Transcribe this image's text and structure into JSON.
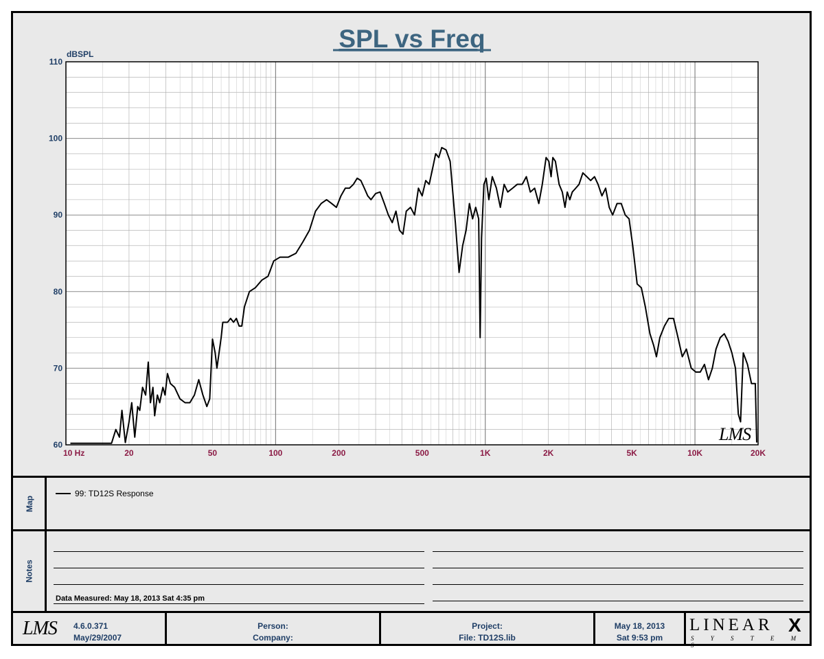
{
  "chart_data": {
    "type": "line",
    "title": "SPL vs Freq",
    "ylabel": "dBSPL",
    "xlabel": "",
    "x_scale": "log",
    "xlim": [
      10,
      20000
    ],
    "ylim": [
      60,
      110
    ],
    "grid": true,
    "x_ticks": [
      {
        "value": 10,
        "label": "10  Hz"
      },
      {
        "value": 20,
        "label": "20"
      },
      {
        "value": 50,
        "label": "50"
      },
      {
        "value": 100,
        "label": "100"
      },
      {
        "value": 200,
        "label": "200"
      },
      {
        "value": 500,
        "label": "500"
      },
      {
        "value": 1000,
        "label": "1K"
      },
      {
        "value": 2000,
        "label": "2K"
      },
      {
        "value": 5000,
        "label": "5K"
      },
      {
        "value": 10000,
        "label": "10K"
      },
      {
        "value": 20000,
        "label": "20K"
      }
    ],
    "y_ticks": [
      60,
      70,
      80,
      90,
      100,
      110
    ],
    "series": [
      {
        "name": "99: TD12S Response",
        "color": "#000000",
        "points": [
          [
            10.5,
            60.2
          ],
          [
            16.5,
            60.2
          ],
          [
            17.3,
            62
          ],
          [
            18,
            61
          ],
          [
            18.5,
            64.5
          ],
          [
            19.2,
            60.3
          ],
          [
            20,
            63
          ],
          [
            20.6,
            65.5
          ],
          [
            21.3,
            61
          ],
          [
            22,
            65
          ],
          [
            22.5,
            64.5
          ],
          [
            23.2,
            67.5
          ],
          [
            24,
            66.5
          ],
          [
            24.7,
            70.8
          ],
          [
            25.3,
            65.5
          ],
          [
            26,
            67.5
          ],
          [
            26.5,
            63.8
          ],
          [
            27.3,
            66.5
          ],
          [
            28,
            65.5
          ],
          [
            29,
            67.5
          ],
          [
            29.7,
            66.5
          ],
          [
            30.5,
            69.3
          ],
          [
            31.5,
            68
          ],
          [
            33,
            67.5
          ],
          [
            35,
            66
          ],
          [
            37,
            65.5
          ],
          [
            39,
            65.5
          ],
          [
            41,
            66.5
          ],
          [
            43,
            68.5
          ],
          [
            45,
            66.5
          ],
          [
            47,
            65
          ],
          [
            48.5,
            66
          ],
          [
            50,
            73.8
          ],
          [
            51.5,
            72
          ],
          [
            52.5,
            70
          ],
          [
            55,
            74
          ],
          [
            56,
            76
          ],
          [
            59,
            76
          ],
          [
            61,
            76.5
          ],
          [
            63,
            76
          ],
          [
            65,
            76.5
          ],
          [
            67,
            75.5
          ],
          [
            69,
            75.5
          ],
          [
            71,
            78
          ],
          [
            75,
            80
          ],
          [
            80,
            80.5
          ],
          [
            86,
            81.5
          ],
          [
            92,
            82
          ],
          [
            98,
            84
          ],
          [
            105,
            84.5
          ],
          [
            115,
            84.5
          ],
          [
            125,
            85
          ],
          [
            135,
            86.5
          ],
          [
            145,
            88
          ],
          [
            155,
            90.5
          ],
          [
            165,
            91.5
          ],
          [
            175,
            92
          ],
          [
            185,
            91.5
          ],
          [
            195,
            91
          ],
          [
            205,
            92.5
          ],
          [
            215,
            93.5
          ],
          [
            225,
            93.5
          ],
          [
            235,
            94
          ],
          [
            245,
            94.8
          ],
          [
            255,
            94.5
          ],
          [
            265,
            93.5
          ],
          [
            275,
            92.5
          ],
          [
            285,
            92
          ],
          [
            300,
            92.8
          ],
          [
            315,
            93
          ],
          [
            330,
            91.5
          ],
          [
            345,
            90
          ],
          [
            360,
            89
          ],
          [
            375,
            90.5
          ],
          [
            390,
            88
          ],
          [
            405,
            87.5
          ],
          [
            420,
            90.5
          ],
          [
            440,
            91
          ],
          [
            460,
            90
          ],
          [
            480,
            93.5
          ],
          [
            500,
            92.5
          ],
          [
            520,
            94.5
          ],
          [
            540,
            94
          ],
          [
            560,
            96
          ],
          [
            580,
            98
          ],
          [
            600,
            97.5
          ],
          [
            620,
            98.8
          ],
          [
            650,
            98.5
          ],
          [
            680,
            97
          ],
          [
            720,
            89
          ],
          [
            750,
            82.5
          ],
          [
            780,
            86
          ],
          [
            810,
            88
          ],
          [
            840,
            91.5
          ],
          [
            870,
            89.5
          ],
          [
            900,
            91
          ],
          [
            930,
            89.5
          ],
          [
            945,
            74
          ],
          [
            960,
            87
          ],
          [
            985,
            94
          ],
          [
            1010,
            94.8
          ],
          [
            1040,
            92
          ],
          [
            1080,
            95
          ],
          [
            1130,
            93.5
          ],
          [
            1180,
            91
          ],
          [
            1230,
            94
          ],
          [
            1280,
            93
          ],
          [
            1350,
            93.5
          ],
          [
            1420,
            94
          ],
          [
            1500,
            94
          ],
          [
            1570,
            95
          ],
          [
            1640,
            93
          ],
          [
            1720,
            93.5
          ],
          [
            1800,
            91.5
          ],
          [
            1870,
            94
          ],
          [
            1950,
            97.5
          ],
          [
            2010,
            97
          ],
          [
            2060,
            95
          ],
          [
            2100,
            97.5
          ],
          [
            2160,
            97
          ],
          [
            2250,
            94
          ],
          [
            2330,
            93
          ],
          [
            2400,
            91
          ],
          [
            2460,
            93
          ],
          [
            2530,
            92
          ],
          [
            2600,
            93
          ],
          [
            2700,
            93.5
          ],
          [
            2800,
            94
          ],
          [
            2920,
            95.5
          ],
          [
            3050,
            95
          ],
          [
            3180,
            94.5
          ],
          [
            3320,
            95
          ],
          [
            3450,
            94
          ],
          [
            3600,
            92.5
          ],
          [
            3750,
            93.5
          ],
          [
            3900,
            91
          ],
          [
            4050,
            90
          ],
          [
            4250,
            91.5
          ],
          [
            4450,
            91.5
          ],
          [
            4650,
            90
          ],
          [
            4850,
            89.5
          ],
          [
            5050,
            86
          ],
          [
            5300,
            81
          ],
          [
            5550,
            80.5
          ],
          [
            5800,
            78
          ],
          [
            6100,
            74.5
          ],
          [
            6350,
            73
          ],
          [
            6550,
            71.5
          ],
          [
            6800,
            74
          ],
          [
            7150,
            75.5
          ],
          [
            7500,
            76.5
          ],
          [
            7900,
            76.5
          ],
          [
            8300,
            74
          ],
          [
            8700,
            71.5
          ],
          [
            9100,
            72.5
          ],
          [
            9600,
            70
          ],
          [
            10100,
            69.5
          ],
          [
            10600,
            69.5
          ],
          [
            11100,
            70.5
          ],
          [
            11600,
            68.5
          ],
          [
            12100,
            70
          ],
          [
            12600,
            72.5
          ],
          [
            13200,
            74
          ],
          [
            13800,
            74.5
          ],
          [
            14400,
            73.5
          ],
          [
            15000,
            72
          ],
          [
            15600,
            70
          ],
          [
            16100,
            64
          ],
          [
            16500,
            63
          ],
          [
            17000,
            72
          ],
          [
            17800,
            70.5
          ],
          [
            18600,
            68
          ],
          [
            19400,
            68
          ],
          [
            19700,
            60.3
          ]
        ]
      }
    ]
  },
  "map": {
    "label": "Map"
  },
  "notes": {
    "label": "Notes",
    "measured": "Data Measured: May 18, 2013  Sat  4:35 pm"
  },
  "footer": {
    "version": "4.6.0.371",
    "version_date": "May/29/2007",
    "person": "Person:",
    "company": "Company:",
    "project": "Project:",
    "file": "File: TD12S.lib",
    "date": "May 18, 2013",
    "time": "Sat  9:53 pm",
    "logo_lms": "LMS",
    "brand_main": "LINEAR",
    "brand_x": "X",
    "brand_sub": "S Y S T E M S"
  },
  "colors": {
    "title": "#3d6580",
    "axis_label": "#1f3e66",
    "x_tick_label": "#8b1b45",
    "grid": "#a8a8a8",
    "plot_bg": "#ffffff",
    "frame_bg": "#e9e9e9"
  }
}
